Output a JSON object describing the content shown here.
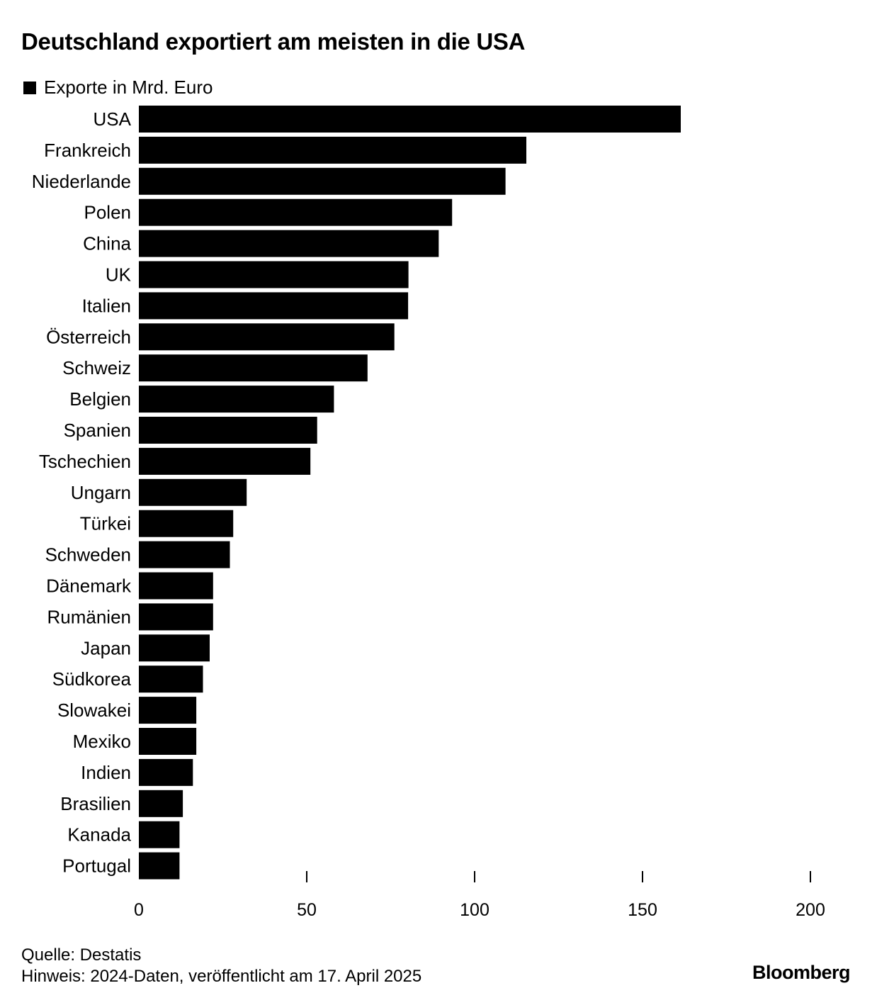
{
  "title": "Deutschland exportiert am meisten in die USA",
  "legend": {
    "label": "Exporte in Mrd. Euro",
    "color": "#000000"
  },
  "chart_data": {
    "type": "bar",
    "orientation": "horizontal",
    "categories": [
      "USA",
      "Frankreich",
      "Niederlande",
      "Polen",
      "China",
      "UK",
      "Italien",
      "Österreich",
      "Schweiz",
      "Belgien",
      "Spanien",
      "Tschechien",
      "Ungarn",
      "Türkei",
      "Schweden",
      "Dänemark",
      "Rumänien",
      "Japan",
      "Südkorea",
      "Slowakei",
      "Mexiko",
      "Indien",
      "Brasilien",
      "Kanada",
      "Portugal"
    ],
    "series": [
      {
        "name": "Exporte in Mrd. Euro",
        "color": "#000000",
        "values": [
          161.4,
          115.4,
          109.2,
          93.3,
          89.3,
          80.3,
          80.2,
          76.1,
          68.1,
          58.1,
          53.1,
          51.1,
          32.1,
          28.1,
          27.1,
          22.1,
          22.1,
          21.1,
          19.1,
          17.1,
          17.1,
          16.1,
          13.1,
          12.1,
          12.1
        ]
      }
    ],
    "xlim": [
      0,
      200
    ],
    "xticks": [
      0,
      50,
      100,
      150,
      200
    ],
    "xtick_labels": [
      "0",
      "50",
      "100",
      "150",
      "200"
    ],
    "grid": false,
    "legend_position": "top-left"
  },
  "footer": {
    "source": "Quelle: Destatis",
    "note": "Hinweis: 2024-Daten, veröffentlicht am 17. April 2025"
  },
  "brand": "Bloomberg"
}
